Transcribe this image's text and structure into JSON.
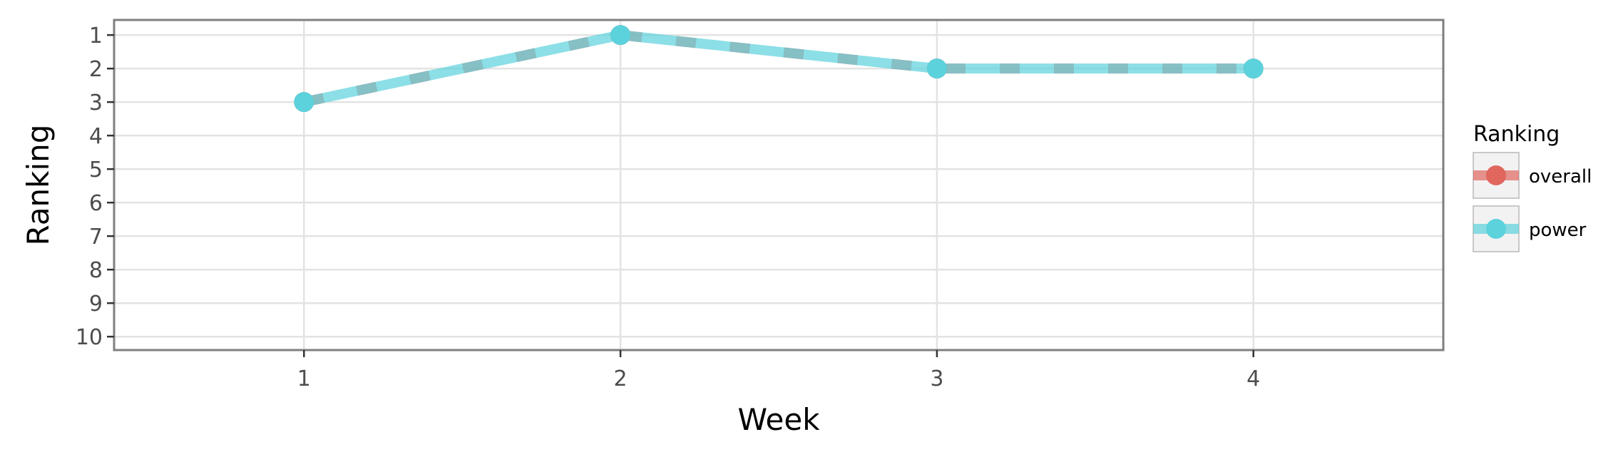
{
  "chart_data": {
    "type": "line",
    "xlabel": "Week",
    "ylabel": "Ranking",
    "x": [
      1,
      2,
      3,
      4
    ],
    "xticks": [
      "1",
      "2",
      "3",
      "4"
    ],
    "xlim": [
      0.4,
      4.6
    ],
    "yticks": [
      "1",
      "2",
      "3",
      "4",
      "5",
      "6",
      "7",
      "8",
      "9",
      "10"
    ],
    "ylim": [
      10.4,
      0.55
    ],
    "y_reversed": true,
    "grid": true,
    "legend": {
      "title": "Ranking",
      "position": "right"
    },
    "series": [
      {
        "name": "overall",
        "values": [
          3,
          1,
          2,
          2
        ],
        "color": "#e0665e",
        "style": "dashed"
      },
      {
        "name": "power",
        "values": [
          3,
          1,
          2,
          2
        ],
        "color": "#5bd2dc",
        "style": "solid"
      }
    ]
  }
}
